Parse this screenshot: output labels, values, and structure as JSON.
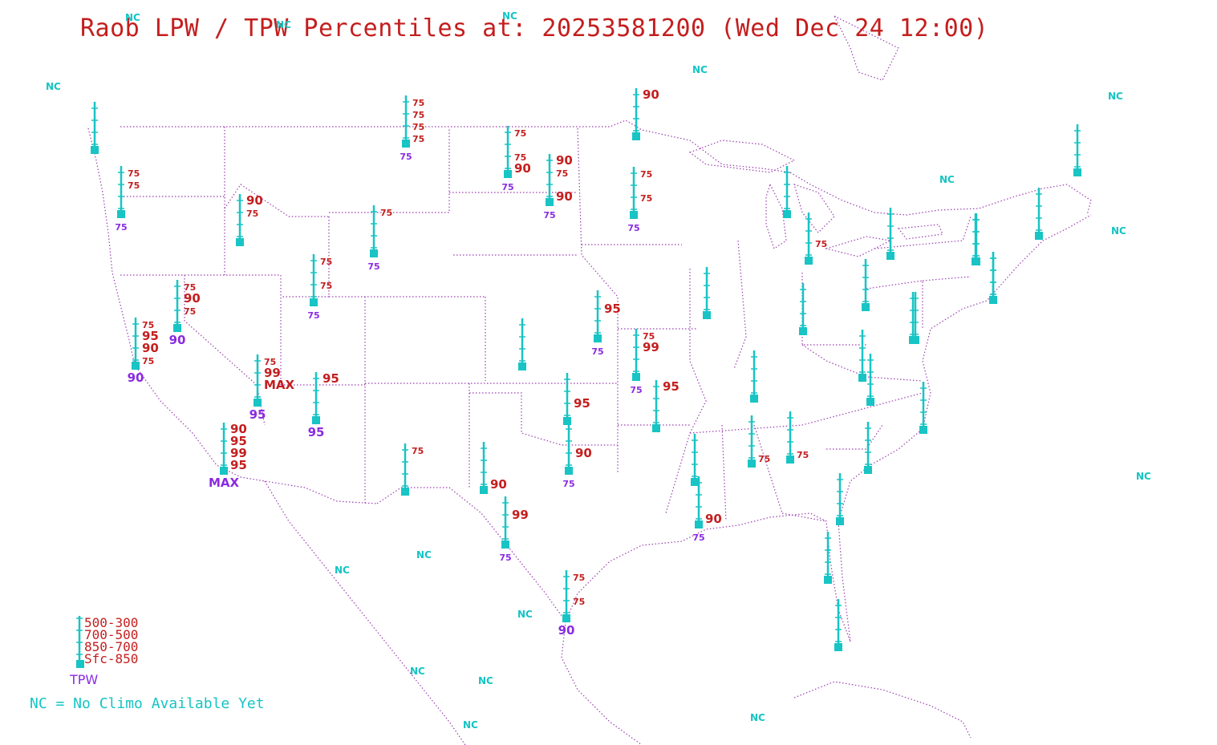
{
  "title": "Raob LPW / TPW Percentiles at: 20253581200 (Wed Dec 24 12:00)",
  "nc_label": "NC",
  "legend": {
    "layers": [
      "500-300",
      "700-500",
      "850-700",
      "Sfc-850"
    ],
    "tpw_label": "TPW",
    "nc_note": "NC = No Climo Available Yet"
  },
  "colors": {
    "station": "#18c4c4",
    "layer_text": "#c41e1e",
    "tpw_text": "#8a2be2",
    "nc_text": "#14c4c4",
    "borders": "#9a3fb0"
  },
  "stations": [
    {
      "id": "s1",
      "lay": [
        "",
        "",
        "",
        ""
      ],
      "tpw": ""
    },
    {
      "id": "s2",
      "lay": [
        "75",
        "75",
        "",
        ""
      ],
      "tpw": "75"
    },
    {
      "id": "s3",
      "lay": [
        "75",
        "75",
        "75",
        "75"
      ],
      "tpw": "75"
    },
    {
      "id": "s4",
      "lay": [
        "75",
        "",
        "75",
        "90"
      ],
      "tpw": "75"
    },
    {
      "id": "s5",
      "lay": [
        "90",
        "75",
        "",
        "90"
      ],
      "tpw": "75"
    },
    {
      "id": "s6",
      "lay": [
        "90",
        "",
        "",
        ""
      ],
      "tpw": ""
    },
    {
      "id": "s7",
      "lay": [
        "75",
        "",
        "75",
        ""
      ],
      "tpw": "75"
    },
    {
      "id": "s8",
      "lay": [
        "90",
        "75",
        "",
        ""
      ],
      "tpw": ""
    },
    {
      "id": "s9",
      "lay": [
        "75",
        "",
        "",
        ""
      ],
      "tpw": "75"
    },
    {
      "id": "s10",
      "lay": [
        "75",
        "",
        "75",
        ""
      ],
      "tpw": "75"
    },
    {
      "id": "s11",
      "lay": [
        "75",
        "90",
        "75",
        ""
      ],
      "tpw": "90"
    },
    {
      "id": "s12",
      "lay": [
        "75",
        "95",
        "90",
        "75"
      ],
      "tpw": "90"
    },
    {
      "id": "s13",
      "lay": [
        "75",
        "99",
        "MAX",
        ""
      ],
      "tpw": "95"
    },
    {
      "id": "s14",
      "lay": [
        "95",
        "",
        "",
        ""
      ],
      "tpw": "95"
    },
    {
      "id": "s15",
      "lay": [
        "90",
        "95",
        "99",
        "95"
      ],
      "tpw": "MAX"
    },
    {
      "id": "s16",
      "lay": [
        "75",
        "",
        "",
        ""
      ],
      "tpw": ""
    },
    {
      "id": "s17",
      "lay": [
        "",
        "",
        "",
        "90"
      ],
      "tpw": ""
    },
    {
      "id": "s18",
      "lay": [
        "",
        "99",
        "",
        ""
      ],
      "tpw": "75"
    },
    {
      "id": "s19",
      "lay": [
        "75",
        "",
        "75",
        ""
      ],
      "tpw": "90"
    },
    {
      "id": "s20",
      "lay": [
        "",
        "",
        "",
        ""
      ],
      "tpw": ""
    },
    {
      "id": "s21",
      "lay": [
        "",
        "95",
        "",
        ""
      ],
      "tpw": "75"
    },
    {
      "id": "s22",
      "lay": [
        "",
        "",
        "95",
        ""
      ],
      "tpw": ""
    },
    {
      "id": "s23",
      "lay": [
        "",
        "",
        "90",
        ""
      ],
      "tpw": "75"
    },
    {
      "id": "s24",
      "lay": [
        "75",
        "99",
        "",
        ""
      ],
      "tpw": "75"
    },
    {
      "id": "s25",
      "lay": [
        "95",
        "",
        "",
        ""
      ],
      "tpw": ""
    },
    {
      "id": "s26",
      "lay": [
        "",
        "",
        "",
        ""
      ],
      "tpw": ""
    },
    {
      "id": "s27",
      "lay": [
        "",
        "",
        "",
        ""
      ],
      "tpw": ""
    },
    {
      "id": "s28",
      "lay": [
        "",
        "",
        "",
        ""
      ],
      "tpw": ""
    },
    {
      "id": "s29",
      "lay": [
        "",
        "",
        "",
        "90"
      ],
      "tpw": "75"
    },
    {
      "id": "s30",
      "lay": [
        "",
        "",
        "",
        "75"
      ],
      "tpw": ""
    },
    {
      "id": "s31",
      "lay": [
        "",
        "",
        "",
        "75"
      ],
      "tpw": ""
    },
    {
      "id": "s32",
      "lay": [
        "",
        "",
        "",
        ""
      ],
      "tpw": ""
    },
    {
      "id": "s33",
      "lay": [
        "",
        "",
        "75",
        ""
      ],
      "tpw": ""
    },
    {
      "id": "s34",
      "lay": [
        "",
        "",
        "",
        ""
      ],
      "tpw": ""
    },
    {
      "id": "s35",
      "lay": [
        "",
        "",
        "",
        ""
      ],
      "tpw": ""
    },
    {
      "id": "s36",
      "lay": [
        "",
        "",
        "",
        ""
      ],
      "tpw": ""
    },
    {
      "id": "s37",
      "lay": [
        "",
        "",
        "",
        ""
      ],
      "tpw": ""
    },
    {
      "id": "s38",
      "lay": [
        "",
        "",
        "",
        ""
      ],
      "tpw": ""
    },
    {
      "id": "s39",
      "lay": [
        "",
        "",
        "",
        ""
      ],
      "tpw": ""
    },
    {
      "id": "s40",
      "lay": [
        "",
        "",
        "",
        ""
      ],
      "tpw": ""
    },
    {
      "id": "s41",
      "lay": [
        "",
        "",
        "",
        ""
      ],
      "tpw": ""
    },
    {
      "id": "s42",
      "lay": [
        "",
        "",
        "",
        ""
      ],
      "tpw": ""
    },
    {
      "id": "s43",
      "lay": [
        "",
        "",
        "",
        ""
      ],
      "tpw": ""
    },
    {
      "id": "s44",
      "lay": [
        "",
        "",
        "",
        ""
      ],
      "tpw": ""
    },
    {
      "id": "s45",
      "lay": [
        "",
        "",
        "",
        ""
      ],
      "tpw": ""
    },
    {
      "id": "s46",
      "lay": [
        "",
        "",
        "",
        ""
      ],
      "tpw": ""
    },
    {
      "id": "s47",
      "lay": [
        "",
        "",
        "",
        ""
      ],
      "tpw": ""
    },
    {
      "id": "s48",
      "lay": [
        "",
        "",
        "",
        ""
      ],
      "tpw": ""
    },
    {
      "id": "s49",
      "lay": [
        "",
        "",
        "",
        ""
      ],
      "tpw": ""
    },
    {
      "id": "s50",
      "lay": [
        "",
        "",
        "",
        ""
      ],
      "tpw": ""
    },
    {
      "id": "s51",
      "lay": [
        "",
        "",
        "",
        ""
      ],
      "tpw": ""
    }
  ]
}
